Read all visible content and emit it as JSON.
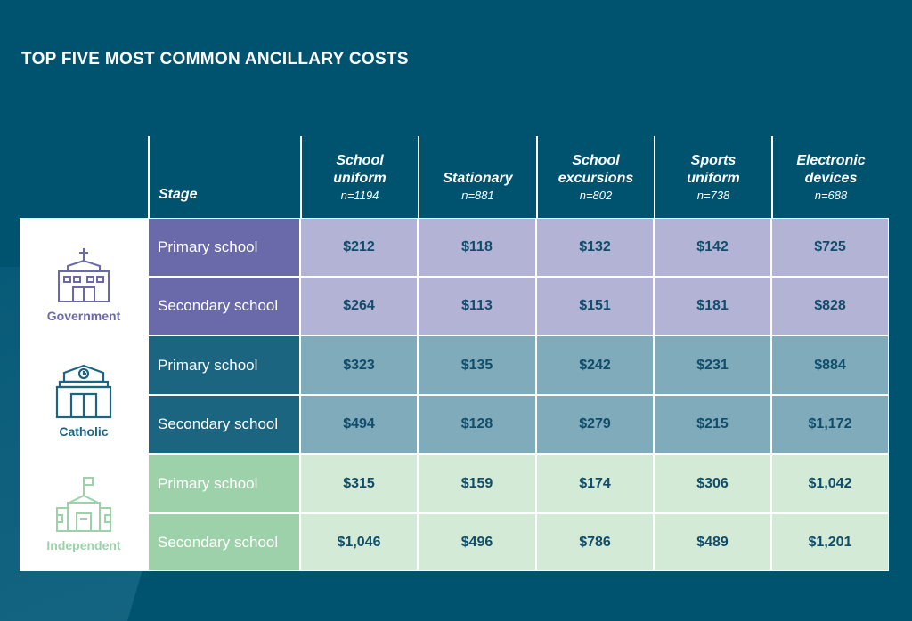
{
  "title": "TOP FIVE MOST COMMON ANCILLARY COSTS",
  "chart_data": {
    "type": "table",
    "title": "TOP FIVE MOST COMMON ANCILLARY COSTS",
    "stage_header": "Stage",
    "columns": [
      {
        "label": "School uniform",
        "n": "n=1194"
      },
      {
        "label": "Stationary",
        "n": "n=881"
      },
      {
        "label": "School excursions",
        "n": "n=802"
      },
      {
        "label": "Sports uniform",
        "n": "n=738"
      },
      {
        "label": "Electronic devices",
        "n": "n=688"
      }
    ],
    "sectors": [
      {
        "name": "Government",
        "icon": "church-school-icon",
        "stage_color": "#6a6aab",
        "cell_color": "#b3b3d6",
        "label_color": "#6a6aab",
        "rows": [
          {
            "stage": "Primary school",
            "values": [
              "$212",
              "$118",
              "$132",
              "$142",
              "$725"
            ]
          },
          {
            "stage": "Secondary school",
            "values": [
              "$264",
              "$113",
              "$151",
              "$181",
              "$828"
            ]
          }
        ]
      },
      {
        "name": "Catholic",
        "icon": "clock-school-icon",
        "stage_color": "#1b6580",
        "cell_color": "#7fabbb",
        "label_color": "#1b6580",
        "rows": [
          {
            "stage": "Primary school",
            "values": [
              "$323",
              "$135",
              "$242",
              "$231",
              "$884"
            ]
          },
          {
            "stage": "Secondary school",
            "values": [
              "$494",
              "$128",
              "$279",
              "$215",
              "$1,172"
            ]
          }
        ]
      },
      {
        "name": "Independent",
        "icon": "flag-school-icon",
        "stage_color": "#9dd1a9",
        "cell_color": "#d2ead6",
        "label_color": "#9dd1a9",
        "rows": [
          {
            "stage": "Primary school",
            "values": [
              "$315",
              "$159",
              "$174",
              "$306",
              "$1,042"
            ]
          },
          {
            "stage": "Secondary school",
            "values": [
              "$1,046",
              "$496",
              "$786",
              "$489",
              "$1,201"
            ]
          }
        ]
      }
    ]
  }
}
